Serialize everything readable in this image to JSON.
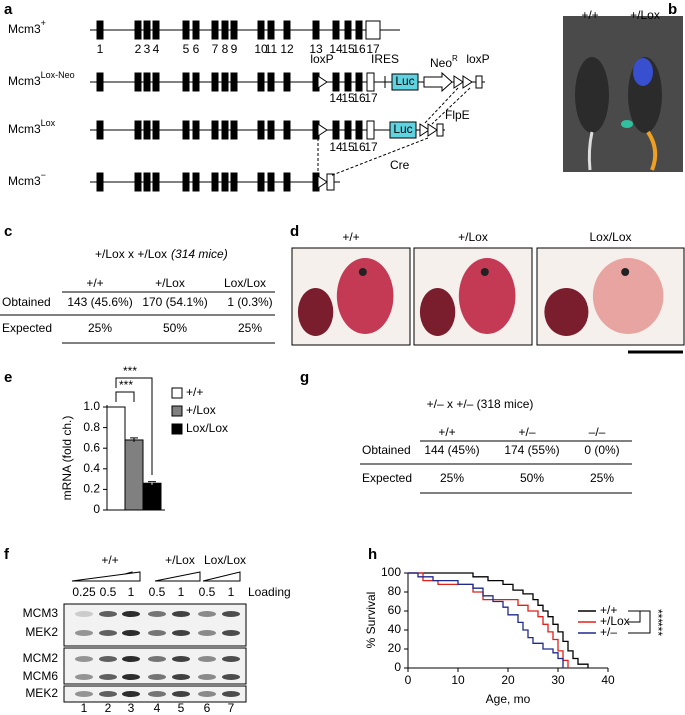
{
  "panel_a": {
    "label": "a",
    "rows": [
      {
        "name": "Mcm3",
        "sup": "+"
      },
      {
        "name": "Mcm3",
        "sup": "Lox-Neo"
      },
      {
        "name": "Mcm3",
        "sup": "Lox"
      },
      {
        "name": "Mcm3",
        "sup": "−"
      }
    ],
    "exon_numbers": [
      "1",
      "2",
      "3",
      "4",
      "5",
      "6",
      "7",
      "8",
      "9",
      "10",
      "11",
      "12",
      "13",
      "14",
      "15",
      "16",
      "17"
    ],
    "lox_neo": {
      "loxP": "loxP",
      "ires": "IRES",
      "luc": "Luc",
      "neo": "Neo",
      "neo_sup": "R",
      "loxP_2": "loxP",
      "exons": [
        "14",
        "15",
        "16",
        "17"
      ],
      "flpe": "FlpE"
    },
    "lox": {
      "luc": "Luc",
      "exons": [
        "14",
        "15",
        "16",
        "17"
      ],
      "cre": "Cre"
    }
  },
  "panel_b": {
    "label": "b",
    "genotypes": [
      "+/+",
      "+/Lox"
    ]
  },
  "panel_c": {
    "label": "c",
    "title": "+/Lox x +/Lox",
    "subtitle": "(314 mice)",
    "table": {
      "header": [
        "+/+",
        "+/Lox",
        "Lox/Lox"
      ],
      "rows": [
        [
          "Obtained",
          "143 (45.6%)",
          "170 (54.1%)",
          "1 (0.3%)"
        ],
        [
          "Expected",
          "25%",
          "50%",
          "25%"
        ]
      ]
    }
  },
  "panel_d": {
    "label": "d",
    "genotypes": [
      "+/+",
      "+/Lox",
      "Lox/Lox"
    ]
  },
  "panel_f": {
    "label": "f",
    "groups": [
      "+/+",
      "+/Lox",
      "Lox/Lox"
    ],
    "loading": [
      "0.25",
      "0.5",
      "1",
      "0.5",
      "1",
      "0.5",
      "1"
    ],
    "loading_label": "Loading",
    "rows": [
      "MCM3",
      "MEK2",
      "MCM2",
      "MCM6",
      "MEK2"
    ],
    "lanes": [
      "1",
      "2",
      "3",
      "4",
      "5",
      "6",
      "7"
    ]
  },
  "panel_g": {
    "label": "g",
    "title": "+/– x +/– (318 mice)",
    "table": {
      "header": [
        "+/+",
        "+/–",
        "–/–"
      ],
      "rows": [
        [
          "Obtained",
          "144 (45%)",
          "174 (55%)",
          "0 (0%)"
        ],
        [
          "Expected",
          "25%",
          "50%",
          "25%"
        ]
      ]
    }
  },
  "chart_data": [
    {
      "type": "bar",
      "label": "e",
      "y_label": "mRNA (fold ch.)",
      "categories": [
        "+/+",
        "+/Lox",
        "Lox/Lox"
      ],
      "values": [
        1.0,
        0.68,
        0.26
      ],
      "errors": [
        null,
        0.02,
        0.015
      ],
      "colors": [
        "#ffffff",
        "#808080",
        "#000000"
      ],
      "ylim": [
        0,
        1
      ],
      "yticks": [
        0,
        0.2,
        0.4,
        0.6,
        0.8,
        {
          "value": 1,
          "label": "1.0"
        }
      ],
      "significance": [
        "***",
        "***"
      ]
    },
    {
      "type": "line",
      "label": "h",
      "x_label": "Age, mo",
      "y_label": "% Survival",
      "xlim": [
        0,
        40
      ],
      "ylim": [
        0,
        100
      ],
      "xticks": [
        0,
        10,
        20,
        30,
        40
      ],
      "yticks": [
        0,
        20,
        40,
        60,
        80,
        100
      ],
      "significance": [
        "***",
        "***"
      ],
      "series": [
        {
          "name": "+/+",
          "color": "#000000",
          "x": [
            0,
            13,
            13,
            16,
            16,
            19,
            19,
            21,
            21,
            23,
            23,
            25,
            25,
            26,
            26,
            27,
            27,
            28,
            28,
            29,
            29,
            30,
            30,
            31,
            31,
            32,
            32,
            33,
            33,
            34,
            34,
            36,
            36
          ],
          "values": [
            100,
            100,
            96,
            96,
            92,
            92,
            88,
            88,
            82,
            82,
            78,
            78,
            72,
            72,
            66,
            66,
            60,
            60,
            54,
            54,
            46,
            46,
            38,
            38,
            28,
            28,
            18,
            18,
            10,
            10,
            4,
            4,
            0
          ]
        },
        {
          "name": "+/Lox",
          "color": "#e0201b",
          "x": [
            0,
            3,
            3,
            6,
            6,
            13,
            13,
            15,
            15,
            22,
            22,
            24,
            24,
            26,
            26,
            27,
            27,
            28,
            28,
            29,
            29,
            30,
            30,
            31,
            31,
            32,
            32
          ],
          "values": [
            100,
            100,
            92,
            92,
            88,
            88,
            80,
            80,
            72,
            72,
            66,
            66,
            60,
            60,
            54,
            54,
            46,
            46,
            38,
            38,
            30,
            30,
            18,
            18,
            8,
            8,
            0
          ]
        },
        {
          "name": "+/–",
          "color": "#1f2a8c",
          "x": [
            0,
            2,
            2,
            5,
            5,
            10,
            10,
            13,
            13,
            15,
            15,
            17,
            17,
            19,
            19,
            20,
            20,
            22,
            22,
            23,
            23,
            24,
            24,
            25,
            25,
            27,
            27,
            29,
            29,
            30,
            30,
            31,
            31
          ],
          "values": [
            100,
            100,
            96,
            96,
            92,
            92,
            88,
            88,
            84,
            84,
            76,
            76,
            70,
            70,
            64,
            64,
            56,
            56,
            48,
            48,
            40,
            40,
            32,
            32,
            26,
            26,
            20,
            20,
            16,
            16,
            10,
            10,
            0
          ]
        }
      ]
    }
  ]
}
